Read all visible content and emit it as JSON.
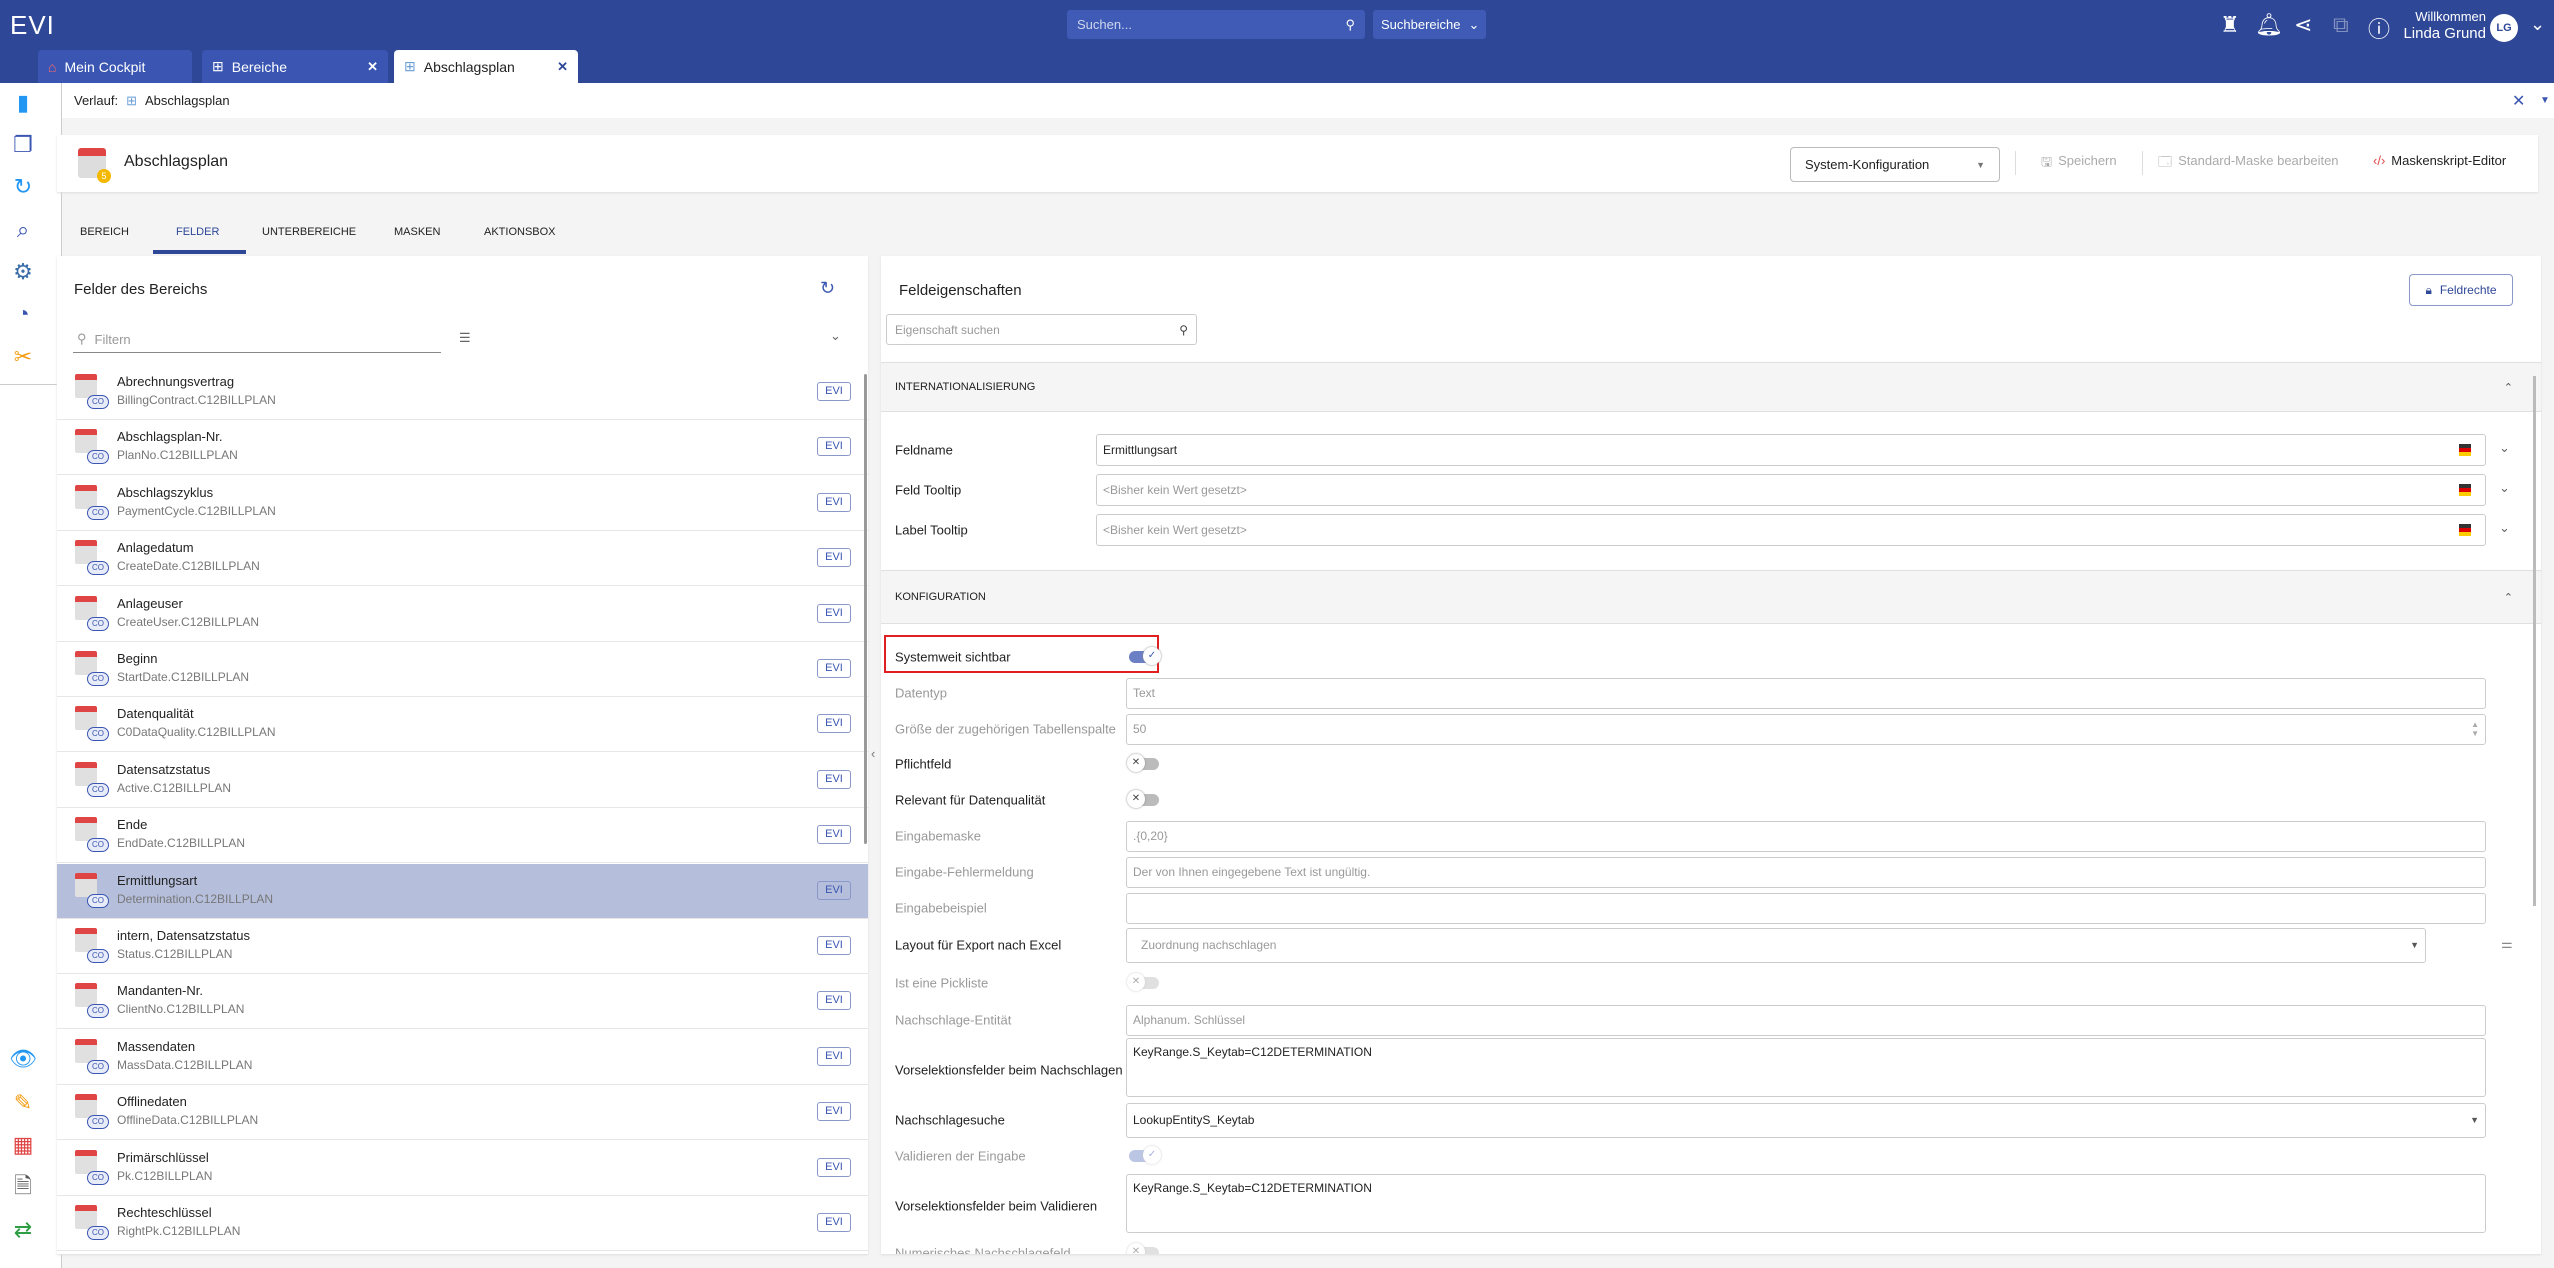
{
  "app": {
    "logo": "EVI",
    "search_placeholder": "Suchen...",
    "scope": "Suchbereiche",
    "welcome": "Willkommen",
    "user": "Linda Grund",
    "initials": "LG"
  },
  "tabs": [
    {
      "label": "Mein Cockpit",
      "icon": "home-icon"
    },
    {
      "label": "Bereiche",
      "icon": "hierarchy-icon"
    },
    {
      "label": "Abschlagsplan",
      "icon": "hierarchy-icon",
      "active": true
    }
  ],
  "breadcrumb": {
    "label": "Verlauf:",
    "item": "Abschlagsplan"
  },
  "header": {
    "title": "Abschlagsplan",
    "config_select": "System-Konfiguration",
    "save": "Speichern",
    "edit_mask": "Standard-Maske bearbeiten",
    "script_editor": "Maskenskript-Editor"
  },
  "main_tabs": [
    "BEREICH",
    "FELDER",
    "UNTERBEREICHE",
    "MASKEN",
    "AKTIONSBOX"
  ],
  "fields_panel": {
    "title": "Felder des Bereichs",
    "filter_placeholder": "Filtern",
    "badge": "EVI",
    "items": [
      {
        "name": "Abrechnungsvertrag",
        "id": "BillingContract.C12BILLPLAN"
      },
      {
        "name": "Abschlagsplan-Nr.",
        "id": "PlanNo.C12BILLPLAN"
      },
      {
        "name": "Abschlagszyklus",
        "id": "PaymentCycle.C12BILLPLAN"
      },
      {
        "name": "Anlagedatum",
        "id": "CreateDate.C12BILLPLAN"
      },
      {
        "name": "Anlageuser",
        "id": "CreateUser.C12BILLPLAN"
      },
      {
        "name": "Beginn",
        "id": "StartDate.C12BILLPLAN"
      },
      {
        "name": "Datenqualität",
        "id": "C0DataQuality.C12BILLPLAN"
      },
      {
        "name": "Datensatzstatus",
        "id": "Active.C12BILLPLAN"
      },
      {
        "name": "Ende",
        "id": "EndDate.C12BILLPLAN"
      },
      {
        "name": "Ermittlungsart",
        "id": "Determination.C12BILLPLAN",
        "selected": true
      },
      {
        "name": "intern, Datensatzstatus",
        "id": "Status.C12BILLPLAN"
      },
      {
        "name": "Mandanten-Nr.",
        "id": "ClientNo.C12BILLPLAN"
      },
      {
        "name": "Massendaten",
        "id": "MassData.C12BILLPLAN"
      },
      {
        "name": "Offlinedaten",
        "id": "OfflineData.C12BILLPLAN"
      },
      {
        "name": "Primärschlüssel",
        "id": "Pk.C12BILLPLAN"
      },
      {
        "name": "Rechteschlüssel",
        "id": "RightPk.C12BILLPLAN"
      }
    ]
  },
  "props_panel": {
    "title": "Feldeigenschaften",
    "rights_button": "Feldrechte",
    "search_placeholder": "Eigenschaft suchen",
    "i18n": {
      "title": "INTERNATIONALISIERUNG",
      "rows": [
        {
          "label": "Feldname",
          "value": "Ermittlungsart"
        },
        {
          "label": "Feld Tooltip",
          "placeholder": "<Bisher kein Wert gesetzt>"
        },
        {
          "label": "Label Tooltip",
          "placeholder": "<Bisher kein Wert gesetzt>"
        }
      ]
    },
    "config": {
      "title": "KONFIGURATION",
      "rows": [
        {
          "label": "Systemweit sichtbar",
          "type": "toggle",
          "on": true,
          "highlighted": true
        },
        {
          "label": "Datentyp",
          "type": "input",
          "value": "Text",
          "disabled": true
        },
        {
          "label": "Größe der zugehörigen Tabellenspalte",
          "type": "number",
          "value": "50",
          "disabled": true
        },
        {
          "label": "Pflichtfeld",
          "type": "toggle",
          "on": false
        },
        {
          "label": "Relevant für Datenqualität",
          "type": "toggle",
          "on": false
        },
        {
          "label": "Eingabemaske",
          "type": "input",
          "value": ".{0,20}",
          "disabled": true
        },
        {
          "label": "Eingabe-Fehlermeldung",
          "type": "input",
          "value": "Der von Ihnen eingegebene Text ist ungültig.",
          "disabled": true
        },
        {
          "label": "Eingabebeispiel",
          "type": "input",
          "value": "",
          "disabled": true
        },
        {
          "label": "Layout für Export nach Excel",
          "type": "select",
          "placeholder": "Zuordnung nachschlagen"
        },
        {
          "label": "Ist eine Pickliste",
          "type": "toggle",
          "on": false,
          "disabled": true
        },
        {
          "label": "Nachschlage-Entität",
          "type": "input",
          "placeholder": "Alphanum. Schlüssel",
          "disabled": true
        },
        {
          "label": "Vorselektionsfelder beim Nachschlagen",
          "type": "textarea",
          "value": "KeyRange.S_Keytab=C12DETERMINATION"
        },
        {
          "label": "Nachschlagesuche",
          "type": "select",
          "value": "LookupEntityS_Keytab"
        },
        {
          "label": "Validieren der Eingabe",
          "type": "toggle",
          "on": true,
          "disabled": true
        },
        {
          "label": "Vorselektionsfelder beim Validieren",
          "type": "textarea",
          "value": "KeyRange.S_Keytab=C12DETERMINATION"
        },
        {
          "label": "Numerisches Nachschlagefeld",
          "type": "toggle",
          "on": false,
          "disabled": true
        }
      ]
    }
  },
  "colors": {
    "brand": "#2e4797",
    "selected_row": "#b5bedb",
    "highlight_border": "#e02020"
  }
}
